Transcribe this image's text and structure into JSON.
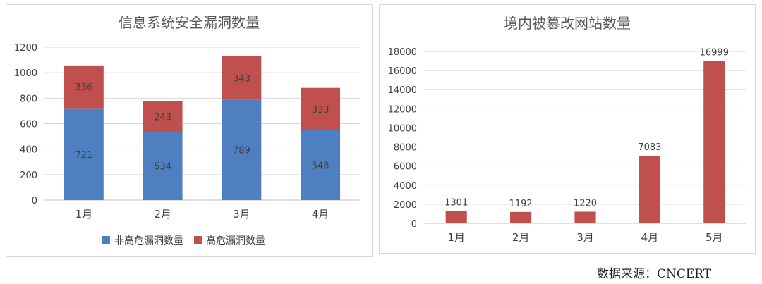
{
  "source_note": "数据来源：CNCERT",
  "chart_data": [
    {
      "type": "bar",
      "stacked": true,
      "title": "信息系统安全漏洞数量",
      "categories": [
        "1月",
        "2月",
        "3月",
        "4月"
      ],
      "series": [
        {
          "name": "非高危漏洞数量",
          "values": [
            721,
            534,
            789,
            548
          ],
          "color": "#4e7fc0"
        },
        {
          "name": "高危漏洞数量",
          "values": [
            336,
            243,
            343,
            333
          ],
          "color": "#c0504d"
        }
      ],
      "ylim": [
        0,
        1200
      ],
      "yticks": [
        0,
        200,
        400,
        600,
        800,
        1000,
        1200
      ],
      "grid": true,
      "legend": "bottom"
    },
    {
      "type": "bar",
      "title": "境内被篡改网站数量",
      "categories": [
        "1月",
        "2月",
        "3月",
        "4月",
        "5月"
      ],
      "series": [
        {
          "values": [
            1301,
            1192,
            1220,
            7083,
            16999
          ],
          "color": "#c0504d"
        }
      ],
      "ylim": [
        0,
        18000
      ],
      "yticks": [
        0,
        2000,
        4000,
        6000,
        8000,
        10000,
        12000,
        14000,
        16000,
        18000
      ],
      "grid": true,
      "legend": "none"
    }
  ]
}
